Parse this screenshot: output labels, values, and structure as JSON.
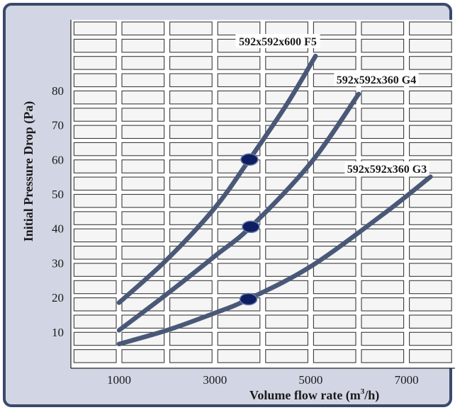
{
  "chart_data": {
    "type": "line",
    "title": "",
    "xlabel": "Volume flow rate (m",
    "xlabel_sup": "3",
    "xlabel_tail": "/h)",
    "ylabel": "Initial Pressure Drop (Pa)",
    "x_ticks": [
      "1000",
      "3000",
      "5000",
      "7000"
    ],
    "y_ticks": [
      "10",
      "20",
      "30",
      "40",
      "50",
      "60",
      "70",
      "80"
    ],
    "xlim": [
      0,
      8000
    ],
    "ylim": [
      0,
      95
    ],
    "grid": true,
    "series": [
      {
        "name": "592x592x600 F5",
        "x": [
          1000,
          2000,
          3000,
          3720,
          4500,
          5100
        ],
        "y": [
          18.5,
          31,
          46,
          60,
          76,
          90
        ],
        "marker": {
          "x": 3720,
          "y": 60
        }
      },
      {
        "name": "592x592x360 G4",
        "x": [
          1000,
          2000,
          3000,
          3750,
          5000,
          6000
        ],
        "y": [
          10.5,
          21,
          32,
          40.5,
          59,
          79
        ],
        "marker": {
          "x": 3750,
          "y": 40.5
        }
      },
      {
        "name": "592x592x360 G3",
        "x": [
          1000,
          2000,
          3000,
          3700,
          5000,
          6500,
          7500
        ],
        "y": [
          6.5,
          10.5,
          15.5,
          19.5,
          29,
          44,
          55
        ],
        "marker": {
          "x": 3700,
          "y": 19.5
        }
      }
    ],
    "colors": {
      "frame_bg": "#d2d6e4",
      "frame_border": "#3b4a6b",
      "plot_bg": "#ffffff",
      "grid_fill": "#f5f5f5",
      "grid_line": "#3a3a3a",
      "curve": "#4a5878",
      "marker": "#0e1e62"
    }
  }
}
